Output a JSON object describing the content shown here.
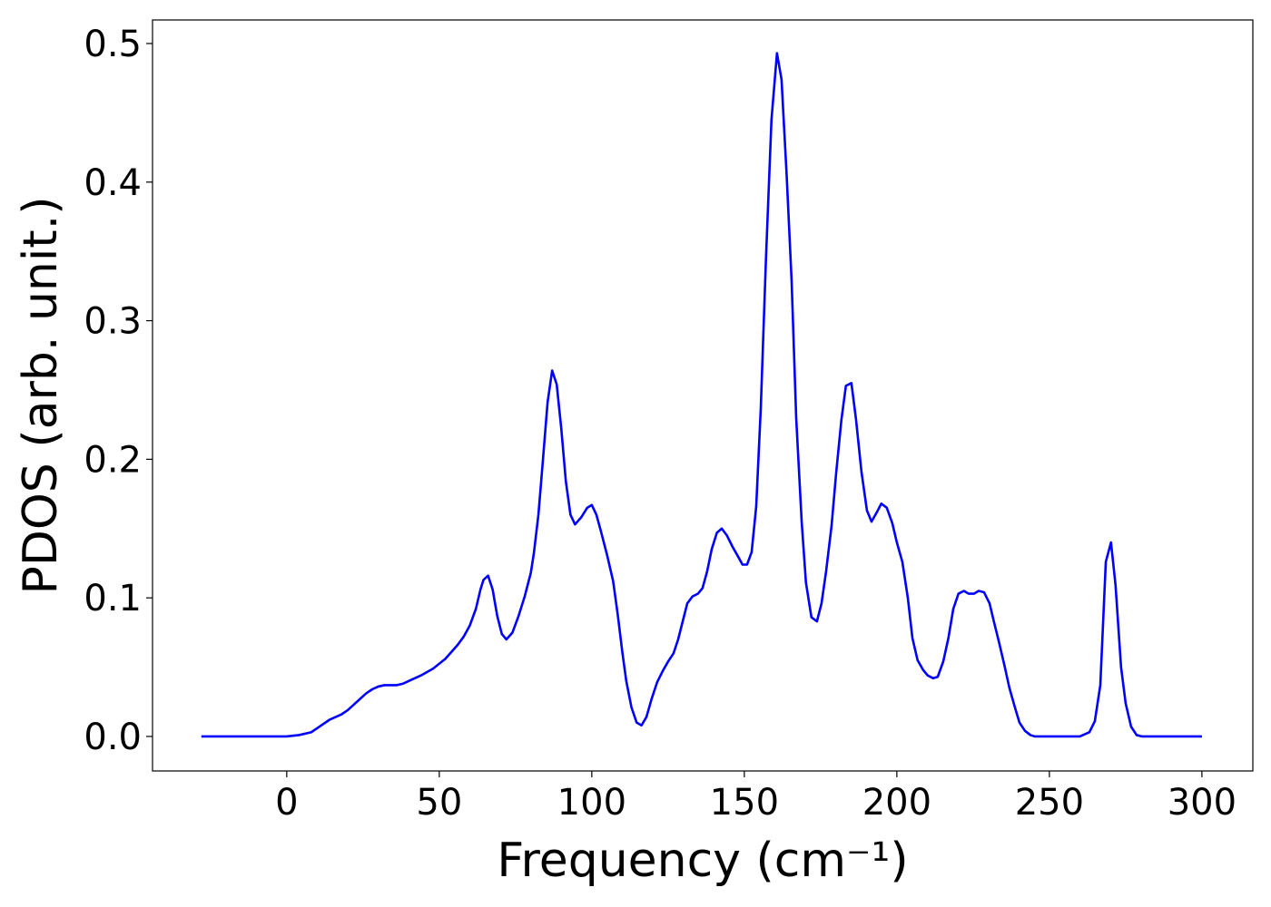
{
  "chart_data": {
    "type": "line",
    "x_label": "Frequency (cm⁻¹)",
    "y_label": "PDOS (arb. unit.)",
    "x": [
      -28,
      -20,
      -10,
      0,
      4,
      8,
      10,
      12,
      14,
      16,
      18,
      20,
      22,
      24,
      26,
      28,
      30,
      32,
      36,
      38,
      40,
      44,
      48,
      52,
      56,
      58,
      60,
      62,
      63.5,
      64.5,
      66,
      67.5,
      69,
      70.5,
      72,
      74,
      76,
      78,
      80,
      81,
      82.5,
      84,
      85.5,
      87,
      88.5,
      90,
      91.5,
      93,
      94.5,
      96.5,
      98.5,
      100,
      101.5,
      103,
      105,
      107,
      108.5,
      110,
      111.3,
      113,
      114.7,
      116.3,
      117.9,
      119.6,
      121.4,
      123.2,
      125,
      126.8,
      128.3,
      129.8,
      131.3,
      133,
      134.8,
      136.3,
      137.8,
      139.3,
      141,
      142.6,
      144.3,
      146.1,
      147.9,
      149.4,
      150.9,
      152.4,
      153.9,
      155.4,
      157.1,
      158.9,
      160.7,
      162.2,
      163.9,
      165.5,
      167,
      168.8,
      170.2,
      172,
      173.8,
      175.3,
      176.8,
      178.6,
      180.1,
      181.8,
      183.3,
      185.1,
      186.6,
      188.4,
      190.2,
      191.7,
      193.5,
      194.9,
      196.7,
      198.5,
      200,
      201.8,
      203.6,
      205.1,
      206.8,
      208.6,
      210.1,
      211.9,
      213.4,
      215.2,
      216.9,
      218.5,
      220.2,
      222,
      223.5,
      225.3,
      226.8,
      228.6,
      230.4,
      231.8,
      233.6,
      235.4,
      236.9,
      238.7,
      240.2,
      242,
      243.8,
      245.2,
      250,
      260,
      263.1,
      264.9,
      266.7,
      268.5,
      270.2,
      271.7,
      273.5,
      275,
      276.8,
      278.6,
      280.4,
      290,
      300
    ],
    "series": [
      {
        "color": "#0000ff",
        "values": [
          0,
          0,
          0,
          0,
          0.001,
          0.003,
          0.006,
          0.009,
          0.012,
          0.014,
          0.016,
          0.019,
          0.023,
          0.027,
          0.031,
          0.034,
          0.036,
          0.037,
          0.037,
          0.038,
          0.04,
          0.044,
          0.049,
          0.056,
          0.066,
          0.072,
          0.08,
          0.092,
          0.106,
          0.113,
          0.116,
          0.106,
          0.087,
          0.074,
          0.07,
          0.075,
          0.087,
          0.101,
          0.118,
          0.132,
          0.16,
          0.2,
          0.241,
          0.264,
          0.254,
          0.222,
          0.184,
          0.16,
          0.153,
          0.158,
          0.165,
          0.167,
          0.16,
          0.148,
          0.131,
          0.112,
          0.088,
          0.061,
          0.04,
          0.021,
          0.01,
          0.008,
          0.014,
          0.027,
          0.039,
          0.047,
          0.054,
          0.06,
          0.07,
          0.083,
          0.096,
          0.101,
          0.103,
          0.107,
          0.119,
          0.135,
          0.147,
          0.15,
          0.145,
          0.137,
          0.13,
          0.124,
          0.124,
          0.133,
          0.166,
          0.237,
          0.345,
          0.445,
          0.493,
          0.474,
          0.404,
          0.329,
          0.23,
          0.155,
          0.111,
          0.086,
          0.083,
          0.096,
          0.119,
          0.152,
          0.19,
          0.228,
          0.253,
          0.255,
          0.229,
          0.191,
          0.163,
          0.155,
          0.162,
          0.168,
          0.165,
          0.154,
          0.14,
          0.126,
          0.1,
          0.071,
          0.055,
          0.048,
          0.044,
          0.042,
          0.043,
          0.054,
          0.071,
          0.092,
          0.103,
          0.105,
          0.103,
          0.103,
          0.105,
          0.104,
          0.096,
          0.083,
          0.067,
          0.05,
          0.035,
          0.021,
          0.01,
          0.004,
          0.001,
          0,
          0,
          0,
          0.003,
          0.011,
          0.037,
          0.126,
          0.14,
          0.109,
          0.05,
          0.024,
          0.007,
          0.001,
          0,
          0,
          0
        ]
      }
    ],
    "xlim": [
      -44,
      316.7
    ],
    "ylim": [
      -0.0249,
      0.517
    ],
    "xticks": [
      0,
      50,
      100,
      150,
      200,
      250,
      300
    ],
    "yticks": [
      {
        "value": 0,
        "label": "0.0"
      },
      0.1,
      0.2,
      0.3,
      0.4,
      0.5
    ]
  }
}
